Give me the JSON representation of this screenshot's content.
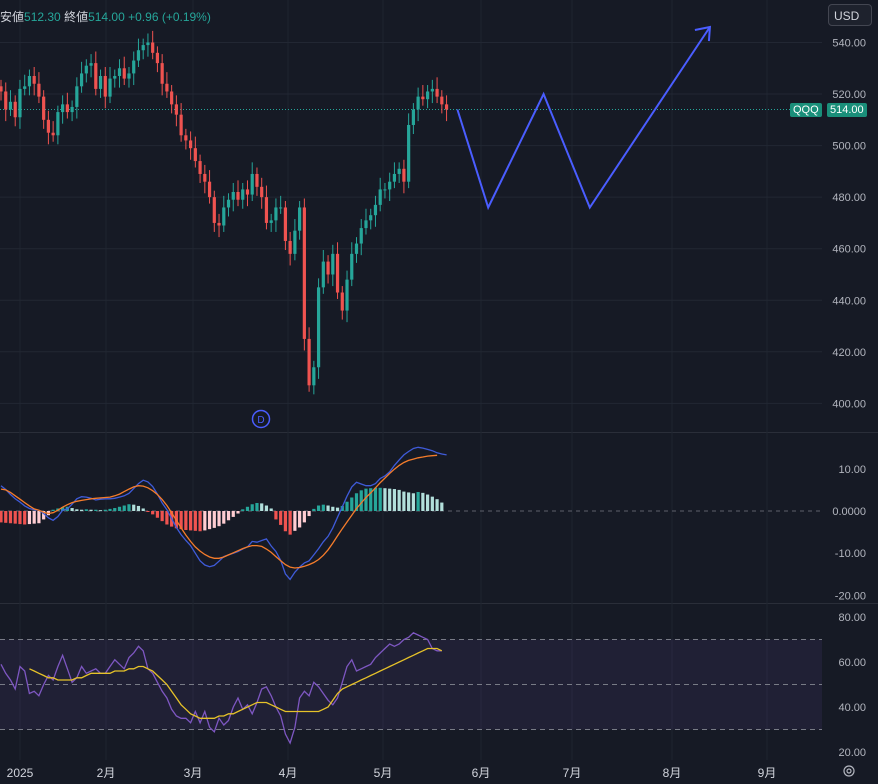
{
  "header": {
    "low_label": "安値",
    "low_value": "512.30",
    "close_label": "終値",
    "close_value": "514.00",
    "change": "+0.96 (+0.19%)"
  },
  "currency_button": "USD",
  "price_label": {
    "symbol": "QQQ",
    "value": "514.00"
  },
  "event_marker": "D",
  "x_axis_labels": [
    "2025",
    "2月",
    "3月",
    "4月",
    "5月",
    "6月",
    "7月",
    "8月",
    "9月"
  ],
  "colors": {
    "background": "#161a25",
    "up": "#26a69a",
    "down": "#ef5350",
    "projection": "#4a5dff",
    "macd_line": "#3f5bd9",
    "signal_line": "#f57c2b",
    "rsi_line": "#7e57c2",
    "rsi_ma": "#e6c229"
  },
  "chart_data": [
    {
      "type": "candlestick",
      "name": "QQQ",
      "y_ticks": [
        "540.00",
        "520.00",
        "500.00",
        "480.00",
        "460.00",
        "440.00",
        "420.00",
        "400.00"
      ],
      "ylim": [
        393,
        548
      ],
      "last_price": 514.0,
      "closes": [
        521,
        514,
        517,
        511,
        522,
        523,
        527,
        524,
        519,
        510,
        505,
        504,
        513,
        516,
        513,
        515,
        523,
        528,
        531,
        532,
        522,
        527,
        519,
        526,
        527,
        530,
        526,
        528,
        533,
        537,
        539,
        540,
        536,
        532,
        524,
        521,
        516,
        512,
        504,
        502,
        499,
        494,
        489,
        486,
        480,
        470,
        469,
        476,
        479,
        482,
        479,
        483,
        481,
        489,
        484,
        480,
        470,
        471,
        476,
        476,
        463,
        458,
        467,
        476,
        425,
        407,
        414,
        445,
        455,
        450,
        458,
        443,
        436,
        448,
        458,
        462,
        468,
        471,
        473,
        477,
        483,
        483,
        486,
        489,
        491,
        486,
        508,
        514,
        519,
        518,
        521,
        522,
        519,
        516,
        514
      ],
      "projection_path": [
        {
          "x": "2025-05-23",
          "y": 514
        },
        {
          "x": "2025-06-02",
          "y": 476
        },
        {
          "x": "2025-06-20",
          "y": 520
        },
        {
          "x": "2025-07-05",
          "y": 476
        },
        {
          "x": "2025-08-13",
          "y": 546
        }
      ]
    },
    {
      "type": "macd",
      "y_ticks": [
        "10.00",
        "0.0000",
        "-10.00",
        "-20.00"
      ],
      "ylim": [
        -22,
        15
      ],
      "macd": [
        6.0,
        5.1,
        3.9,
        2.9,
        2.1,
        1.2,
        0.6,
        0.3,
        0.2,
        -0.6,
        -1.6,
        -2.2,
        -1.3,
        0.2,
        0.5,
        1.6,
        2.9,
        3.4,
        3.3,
        3.0,
        2.6,
        2.8,
        2.9,
        2.9,
        3.0,
        3.3,
        3.6,
        4.2,
        5.3,
        6.5,
        7.3,
        6.9,
        5.8,
        4.0,
        1.9,
        0.3,
        -1.8,
        -3.9,
        -5.6,
        -7.0,
        -8.2,
        -10.0,
        -11.8,
        -12.8,
        -13.2,
        -12.9,
        -11.9,
        -10.8,
        -10.4,
        -10.0,
        -9.6,
        -9.0,
        -8.5,
        -7.2,
        -7.4,
        -7.0,
        -6.6,
        -8.3,
        -9.6,
        -11.7,
        -14.9,
        -16.2,
        -14.5,
        -13.3,
        -12.3,
        -11.8,
        -10.4,
        -8.9,
        -7.3,
        -6.0,
        -4.0,
        -1.5,
        1.0,
        3.5,
        5.7,
        6.8,
        6.4,
        6.0,
        6.0,
        6.5,
        7.7,
        8.3,
        9.3,
        10.8,
        12.1,
        13.3,
        14.1,
        14.8,
        15.1,
        14.9,
        14.6,
        14.3,
        13.8,
        13.5,
        13.3
      ],
      "signal": [
        5.2,
        5.0,
        4.4,
        3.6,
        2.8,
        2.0,
        1.2,
        0.5,
        0.2,
        -0.3,
        -0.6,
        -0.4,
        0.2,
        0.9,
        1.5,
        2.0,
        2.3,
        2.5,
        2.7,
        2.9,
        3.0,
        3.1,
        3.2,
        3.3,
        3.6,
        4.0,
        4.6,
        5.2,
        5.7,
        6.0,
        5.9,
        5.5,
        4.8,
        3.9,
        2.7,
        1.3,
        -0.4,
        -2.2,
        -4.0,
        -5.7,
        -7.2,
        -8.5,
        -9.5,
        -10.3,
        -10.9,
        -11.2,
        -11.2,
        -10.9,
        -10.4,
        -9.9,
        -9.4,
        -8.9,
        -8.5,
        -8.2,
        -8.2,
        -8.4,
        -9.0,
        -9.8,
        -10.8,
        -11.8,
        -12.7,
        -13.3,
        -13.5,
        -13.4,
        -13.1,
        -12.7,
        -12.2,
        -11.5,
        -10.5,
        -9.2,
        -7.6,
        -5.9,
        -4.2,
        -2.6,
        -1.0,
        0.6,
        1.9,
        3.2,
        4.3,
        5.5,
        6.7,
        7.8,
        8.9,
        9.9,
        10.8,
        11.5,
        12.0,
        12.3,
        12.6,
        12.8,
        13.0,
        13.1,
        13.2
      ],
      "histogram": [
        -2.7,
        -2.8,
        -2.9,
        -3.0,
        -3.1,
        -3.2,
        -3.1,
        -3.0,
        -2.9,
        -2.0,
        -1.0,
        0.3,
        0.6,
        0.9,
        1.0,
        0.7,
        0.4,
        0.3,
        0.4,
        0.3,
        0.3,
        0.2,
        0.3,
        0.5,
        0.7,
        1.0,
        1.3,
        1.6,
        1.5,
        1.2,
        0.6,
        -0.1,
        -0.8,
        -1.6,
        -2.4,
        -3.2,
        -3.7,
        -4.1,
        -4.3,
        -4.5,
        -4.6,
        -4.7,
        -4.8,
        -4.6,
        -4.3,
        -4.0,
        -3.6,
        -3.0,
        -2.2,
        -1.4,
        -0.6,
        0.4,
        1.0,
        1.6,
        1.9,
        1.8,
        1.3,
        0.6,
        -2.0,
        -3.3,
        -4.8,
        -5.6,
        -4.7,
        -3.9,
        -2.7,
        -1.2,
        0.5,
        1.3,
        1.5,
        1.3,
        1.0,
        0.8,
        1.2,
        2.2,
        3.2,
        4.2,
        4.9,
        5.3,
        5.4,
        5.5,
        5.5,
        5.4,
        5.3,
        5.2,
        5.0,
        4.6,
        4.4,
        4.2,
        4.5,
        4.3,
        3.9,
        3.4,
        2.8,
        2.0
      ],
      "x_axis_labels": [
        "2025",
        "2月",
        "3月",
        "4月",
        "5月",
        "6月",
        "7月",
        "8月",
        "9月"
      ]
    },
    {
      "type": "rsi",
      "y_ticks": [
        "80.00",
        "60.00",
        "40.00",
        "20.00"
      ],
      "ylim": [
        18,
        84
      ],
      "band": [
        30,
        70
      ],
      "middle": 50,
      "rsi": [
        59,
        55,
        52,
        48,
        58,
        56,
        46,
        47,
        45,
        50,
        54,
        52,
        58,
        63,
        57,
        51,
        53,
        58,
        55,
        56,
        57,
        55,
        55,
        58,
        61,
        59,
        57,
        62,
        64,
        67,
        65,
        57,
        55,
        51,
        47,
        44,
        39,
        36,
        35,
        35,
        33,
        38,
        33,
        38,
        31,
        29,
        35,
        32,
        34,
        40,
        44,
        39,
        41,
        37,
        42,
        48,
        49,
        45,
        40,
        36,
        28,
        24,
        31,
        44,
        47,
        45,
        51,
        49,
        46,
        43,
        41,
        44,
        51,
        58,
        61,
        56,
        57,
        58,
        59,
        62,
        64,
        66,
        68,
        67,
        68,
        70,
        71,
        73,
        72,
        71,
        70,
        66,
        65,
        65
      ],
      "rsi_ma": [
        57,
        56,
        55,
        54,
        53,
        53,
        52,
        52,
        52,
        52,
        53,
        53,
        54,
        55,
        55,
        55,
        55,
        55,
        56,
        56,
        56,
        57,
        57,
        58,
        58,
        57,
        56,
        54,
        52,
        50,
        47,
        44,
        41,
        39,
        37,
        36,
        35,
        35,
        35,
        35,
        36,
        36,
        37,
        37,
        38,
        39,
        40,
        41,
        42,
        42,
        42,
        41,
        40,
        39,
        38,
        38,
        38,
        38,
        38,
        38,
        38,
        38,
        39,
        40,
        43,
        46,
        48,
        49,
        50,
        51,
        52,
        53,
        54,
        55,
        56,
        57,
        58,
        59,
        60,
        61,
        62,
        63,
        64,
        65,
        66,
        66,
        66,
        65
      ]
    }
  ]
}
